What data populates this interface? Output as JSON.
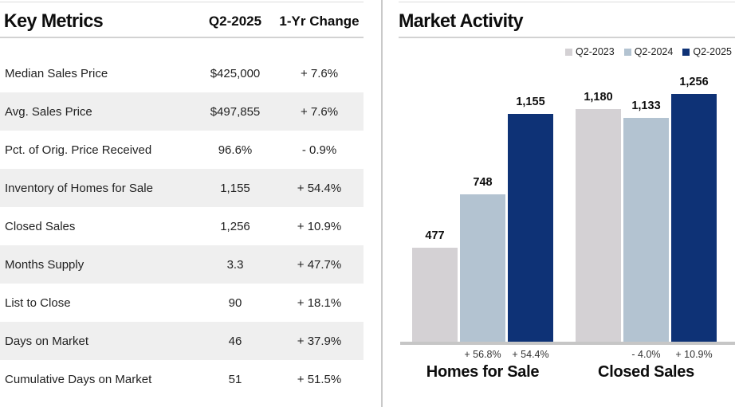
{
  "left_panel": {
    "title": "Key Metrics",
    "col_value_header": "Q2-2025",
    "col_change_header": "1-Yr Change",
    "rows": [
      {
        "metric": "Median Sales Price",
        "value": "$425,000",
        "change": "+ 7.6%"
      },
      {
        "metric": "Avg. Sales Price",
        "value": "$497,855",
        "change": "+ 7.6%"
      },
      {
        "metric": "Pct. of Orig. Price Received",
        "value": "96.6%",
        "change": "- 0.9%"
      },
      {
        "metric": "Inventory of Homes for Sale",
        "value": "1,155",
        "change": "+ 54.4%"
      },
      {
        "metric": "Closed Sales",
        "value": "1,256",
        "change": "+ 10.9%"
      },
      {
        "metric": "Months Supply",
        "value": "3.3",
        "change": "+ 47.7%"
      },
      {
        "metric": "List to Close",
        "value": "90",
        "change": "+ 18.1%"
      },
      {
        "metric": "Days on Market",
        "value": "46",
        "change": "+ 37.9%"
      },
      {
        "metric": "Cumulative Days on Market",
        "value": "51",
        "change": "+ 51.5%"
      }
    ]
  },
  "right_panel": {
    "title": "Market Activity"
  },
  "chart_data": {
    "type": "bar",
    "title": "Market Activity",
    "categories": [
      "Homes for Sale",
      "Closed Sales"
    ],
    "series": [
      {
        "name": "Q2-2023",
        "color": "#d4d1d4",
        "values": [
          477,
          1180
        ],
        "labels": [
          "477",
          "1,180"
        ]
      },
      {
        "name": "Q2-2024",
        "color": "#b3c3d1",
        "values": [
          748,
          1133
        ],
        "labels": [
          "748",
          "1,133"
        ]
      },
      {
        "name": "Q2-2025",
        "color": "#0e3276",
        "values": [
          1155,
          1256
        ],
        "labels": [
          "1,155",
          "1,256"
        ]
      }
    ],
    "pct_changes": [
      [
        "+ 56.8%",
        "+ 54.4%"
      ],
      [
        "- 4.0%",
        "+ 10.9%"
      ]
    ],
    "ylim": [
      0,
      1300
    ],
    "grid": false,
    "legend_position": "top-right",
    "baseline_color": "#c6c6c6"
  }
}
